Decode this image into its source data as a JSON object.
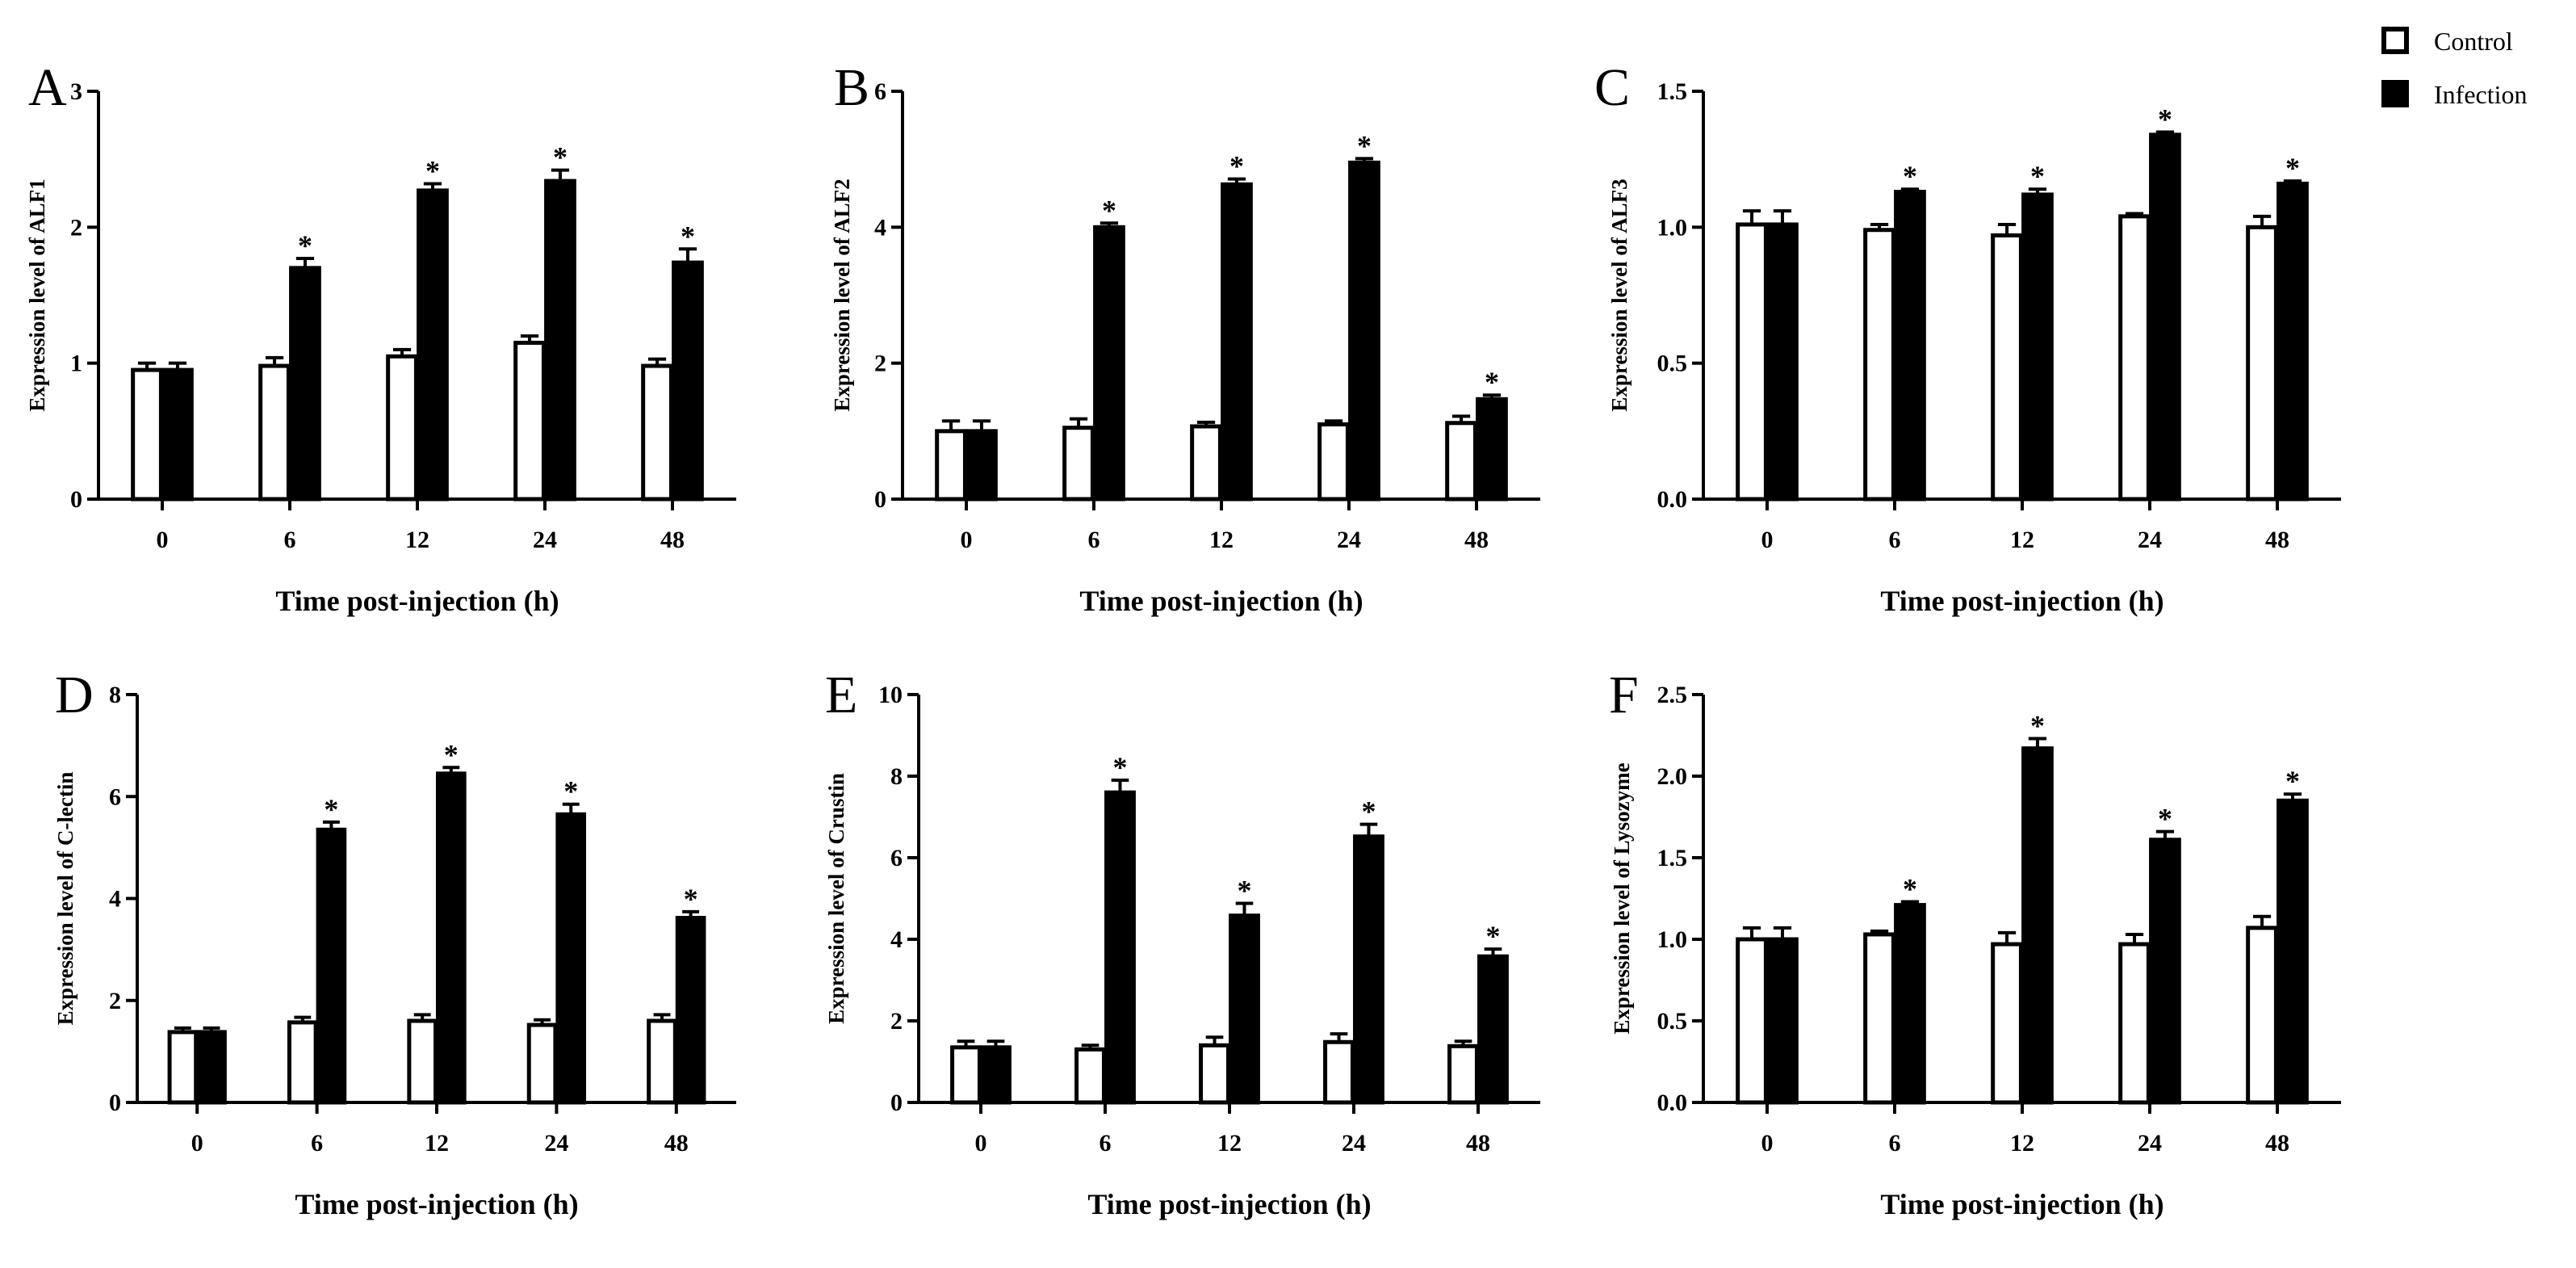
{
  "legend": {
    "entries": [
      {
        "label": "Control",
        "fill": "#ffffff"
      },
      {
        "label": "Infection",
        "fill": "#000000"
      }
    ]
  },
  "colors": {
    "control": "#ffffff",
    "infection": "#000000",
    "stroke": "#000000"
  },
  "chart_data": [
    {
      "type": "bar",
      "panel": "A",
      "title": "",
      "xlabel": "Time post-injection (h)",
      "ylabel": "Expression level of ALF1",
      "categories": [
        "0",
        "6",
        "12",
        "24",
        "48"
      ],
      "ylim": [
        0,
        3
      ],
      "yticks": [
        "0",
        "1",
        "2",
        "3"
      ],
      "series": [
        {
          "name": "Control",
          "values": [
            0.95,
            0.98,
            1.05,
            1.15,
            0.98
          ],
          "errors": [
            0.05,
            0.06,
            0.05,
            0.05,
            0.05
          ]
        },
        {
          "name": "Infection",
          "values": [
            0.95,
            1.7,
            2.27,
            2.34,
            1.74
          ],
          "errors": [
            0.05,
            0.07,
            0.05,
            0.08,
            0.1
          ]
        }
      ],
      "significance": [
        "",
        "*",
        "*",
        "*",
        "*"
      ]
    },
    {
      "type": "bar",
      "panel": "B",
      "title": "",
      "xlabel": "Time post-injection (h)",
      "ylabel": "Expression level of ALF2",
      "categories": [
        "0",
        "6",
        "12",
        "24",
        "48"
      ],
      "ylim": [
        0,
        6
      ],
      "yticks": [
        "0",
        "2",
        "4",
        "6"
      ],
      "series": [
        {
          "name": "Control",
          "values": [
            1.0,
            1.05,
            1.07,
            1.1,
            1.12
          ],
          "errors": [
            0.15,
            0.13,
            0.06,
            0.05,
            0.1
          ]
        },
        {
          "name": "Infection",
          "values": [
            1.0,
            4.0,
            4.63,
            4.95,
            1.47
          ],
          "errors": [
            0.15,
            0.06,
            0.08,
            0.06,
            0.06
          ]
        }
      ],
      "significance": [
        "",
        "*",
        "*",
        "*",
        "*"
      ]
    },
    {
      "type": "bar",
      "panel": "C",
      "title": "",
      "xlabel": "Time post-injection (h)",
      "ylabel": "Expression level of ALF3",
      "categories": [
        "0",
        "6",
        "12",
        "24",
        "48"
      ],
      "ylim": [
        0,
        1.5
      ],
      "yticks": [
        "0.0",
        "0.5",
        "1.0",
        "1.5"
      ],
      "series": [
        {
          "name": "Control",
          "values": [
            1.01,
            0.99,
            0.97,
            1.04,
            1.0
          ],
          "errors": [
            0.05,
            0.02,
            0.04,
            0.01,
            0.04
          ]
        },
        {
          "name": "Infection",
          "values": [
            1.01,
            1.13,
            1.12,
            1.34,
            1.16
          ],
          "errors": [
            0.05,
            0.01,
            0.02,
            0.01,
            0.01
          ]
        }
      ],
      "significance": [
        "",
        "*",
        "*",
        "*",
        "*"
      ]
    },
    {
      "type": "bar",
      "panel": "D",
      "title": "",
      "xlabel": "Time post-injection (h)",
      "ylabel": "Expression level of C-lectin",
      "categories": [
        "0",
        "6",
        "12",
        "24",
        "48"
      ],
      "ylim": [
        0,
        8
      ],
      "yticks": [
        "0",
        "2",
        "4",
        "6",
        "8"
      ],
      "series": [
        {
          "name": "Control",
          "values": [
            1.38,
            1.57,
            1.6,
            1.52,
            1.6
          ],
          "errors": [
            0.08,
            0.1,
            0.12,
            0.1,
            0.12
          ]
        },
        {
          "name": "Infection",
          "values": [
            1.38,
            5.35,
            6.45,
            5.65,
            3.62
          ],
          "errors": [
            0.08,
            0.15,
            0.12,
            0.2,
            0.12
          ]
        }
      ],
      "significance": [
        "",
        "*",
        "*",
        "*",
        "*"
      ]
    },
    {
      "type": "bar",
      "panel": "E",
      "title": "",
      "xlabel": "Time post-injection (h)",
      "ylabel": "Expression level of Crustin",
      "categories": [
        "0",
        "6",
        "12",
        "24",
        "48"
      ],
      "ylim": [
        0,
        10
      ],
      "yticks": [
        "0",
        "2",
        "4",
        "6",
        "8",
        "10"
      ],
      "series": [
        {
          "name": "Control",
          "values": [
            1.35,
            1.3,
            1.4,
            1.48,
            1.38
          ],
          "errors": [
            0.15,
            0.1,
            0.2,
            0.2,
            0.12
          ]
        },
        {
          "name": "Infection",
          "values": [
            1.35,
            7.6,
            4.58,
            6.52,
            3.58
          ],
          "errors": [
            0.15,
            0.3,
            0.3,
            0.3,
            0.18
          ]
        }
      ],
      "significance": [
        "",
        "*",
        "*",
        "*",
        "*"
      ]
    },
    {
      "type": "bar",
      "panel": "F",
      "title": "",
      "xlabel": "Time post-injection (h)",
      "ylabel": "Expression level of Lysozyme",
      "categories": [
        "0",
        "6",
        "12",
        "24",
        "48"
      ],
      "ylim": [
        0,
        2.5
      ],
      "yticks": [
        "0.0",
        "0.5",
        "1.0",
        "1.5",
        "2.0",
        "2.5"
      ],
      "series": [
        {
          "name": "Control",
          "values": [
            1.0,
            1.03,
            0.97,
            0.97,
            1.07
          ],
          "errors": [
            0.07,
            0.02,
            0.07,
            0.06,
            0.07
          ]
        },
        {
          "name": "Infection",
          "values": [
            1.0,
            1.21,
            2.17,
            1.61,
            1.85
          ],
          "errors": [
            0.07,
            0.02,
            0.06,
            0.05,
            0.04
          ]
        }
      ],
      "significance": [
        "",
        "*",
        "*",
        "*",
        "*"
      ]
    }
  ]
}
